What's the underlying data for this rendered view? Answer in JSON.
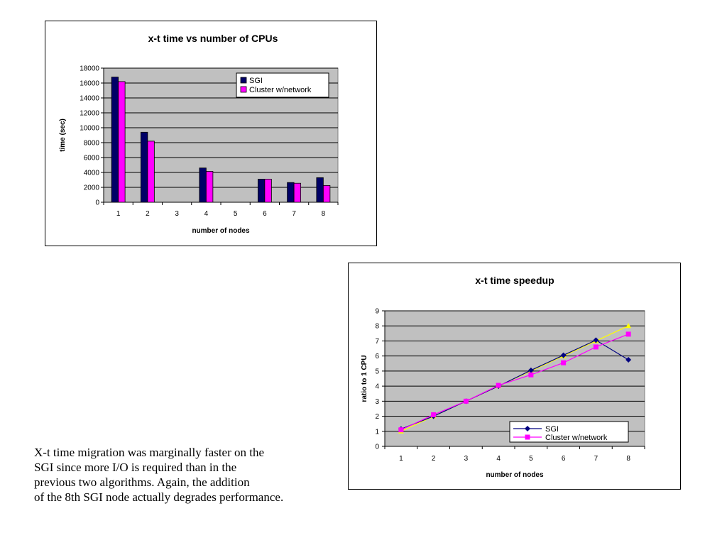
{
  "chart_data": [
    {
      "type": "bar",
      "title": "x-t time vs number of CPUs",
      "xlabel": "number of nodes",
      "ylabel": "time (sec)",
      "categories": [
        "1",
        "2",
        "3",
        "4",
        "5",
        "6",
        "7",
        "8"
      ],
      "ylim": [
        0,
        18000
      ],
      "yticks": [
        0,
        2000,
        4000,
        6000,
        8000,
        10000,
        12000,
        14000,
        16000,
        18000
      ],
      "grid": true,
      "legend": "top-right",
      "plot_background": "#c0c0c0",
      "series": [
        {
          "name": "SGI",
          "color": "#000066",
          "values": [
            16800,
            9400,
            null,
            4600,
            null,
            3100,
            2650,
            3300
          ]
        },
        {
          "name": "Cluster w/network",
          "color": "#ff00ff",
          "values": [
            16200,
            8200,
            null,
            4150,
            null,
            3100,
            2550,
            2250
          ]
        }
      ]
    },
    {
      "type": "line",
      "title": "x-t time speedup",
      "xlabel": "number of nodes",
      "ylabel": "ratio to 1 CPU",
      "x": [
        1,
        2,
        3,
        4,
        5,
        6,
        7,
        8
      ],
      "ylim": [
        0,
        9
      ],
      "yticks": [
        0,
        1,
        2,
        3,
        4,
        5,
        6,
        7,
        8,
        9
      ],
      "grid": true,
      "legend": "bottom-right",
      "plot_background": "#c0c0c0",
      "series": [
        {
          "name": "SGI",
          "color": "#000080",
          "marker": "diamond",
          "values": [
            1.15,
            2.0,
            3.0,
            4.0,
            5.05,
            6.05,
            7.05,
            5.75
          ]
        },
        {
          "name": "Cluster w/network",
          "color": "#ff00ff",
          "marker": "square",
          "values": [
            1.1,
            2.1,
            3.0,
            4.05,
            4.75,
            5.55,
            6.6,
            7.45
          ]
        },
        {
          "name": "",
          "color": "#ffff00",
          "marker": "triangle",
          "values": [
            1,
            2,
            3,
            4,
            5,
            6,
            7,
            8
          ]
        }
      ]
    }
  ],
  "caption": [
    "X-t time migration was marginally faster on the",
    "SGI since more I/O is required than in the",
    "previous two algorithms. Again, the addition",
    "of the 8th SGI node actually degrades performance."
  ]
}
